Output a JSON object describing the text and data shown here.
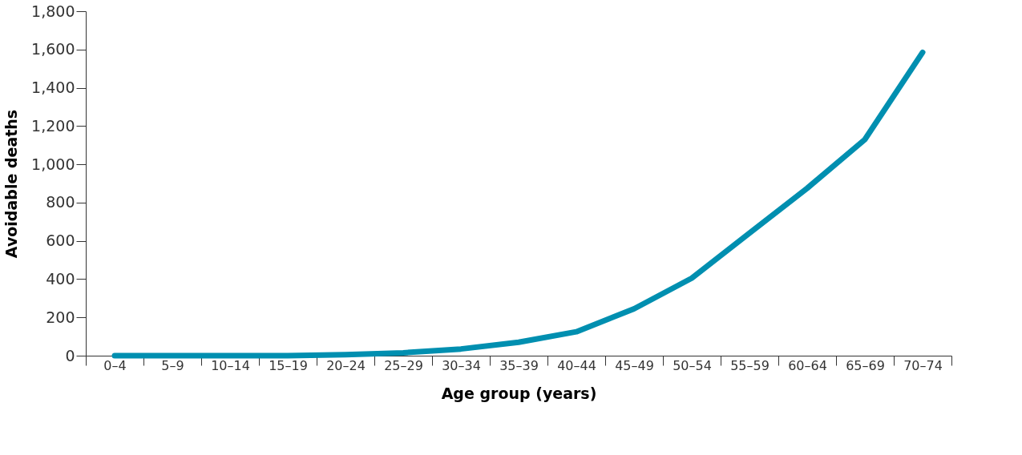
{
  "chart_data": {
    "type": "line",
    "xlabel": "Age group (years)",
    "ylabel": "Avoidable deaths",
    "categories": [
      "0–4",
      "5–9",
      "10–14",
      "15–19",
      "20–24",
      "25–29",
      "30–34",
      "35–39",
      "40–44",
      "45–49",
      "50–54",
      "55–59",
      "60–64",
      "65–69",
      "70–74"
    ],
    "series": [
      {
        "color": "#008fb0",
        "values": [
          0,
          0,
          0,
          0,
          5,
          15,
          35,
          70,
          125,
          245,
          405,
          640,
          875,
          1130,
          1585
        ]
      }
    ],
    "ylim": [
      0,
      1800
    ],
    "yticks": [
      0,
      200,
      400,
      600,
      800,
      {
        "value": 1000,
        "label": "1,000"
      },
      {
        "value": 1200,
        "label": "1,200"
      },
      {
        "value": 1400,
        "label": "1,400"
      },
      {
        "value": 1600,
        "label": "1,600"
      },
      {
        "value": 1800,
        "label": "1,800"
      }
    ],
    "grid": false,
    "marker": "none",
    "line_style": "solid"
  }
}
